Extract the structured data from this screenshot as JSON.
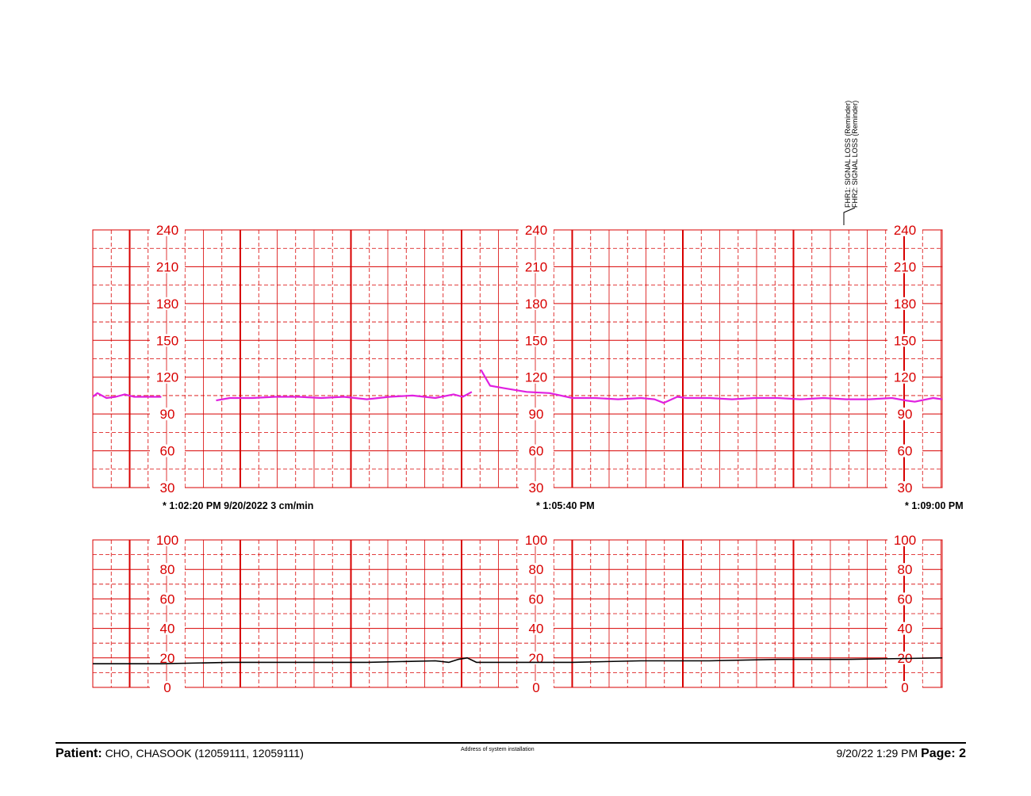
{
  "annotations": [
    "FHR1: SIGNAL LOSS (Reminder)",
    "FHR2: SIGNAL LOSS (Reminder)"
  ],
  "time_marks": [
    "* 1:02:20 PM  9/20/2022  3 cm/min",
    "* 1:05:40 PM",
    "* 1:09:00 PM"
  ],
  "footer": {
    "patient_label": "Patient:",
    "patient_value": "CHO, CHASOOK  (12059111, 12059111)",
    "address": "Address of system installation",
    "printed": "9/20/22 1:29 PM",
    "page_label": "Page: 2"
  },
  "colors": {
    "grid": "#d80000",
    "fhr_trace": "#e020e0",
    "uterine_trace": "#000000"
  },
  "chart_data": [
    {
      "type": "line",
      "ylim": [
        30,
        240
      ],
      "yticks": [
        240,
        210,
        180,
        150,
        120,
        90,
        60,
        30
      ],
      "grid": true,
      "x_minutes": [
        0,
        6.9
      ],
      "series": [
        {
          "segments": [
            [
              [
                0,
                104
              ],
              [
                0.1,
                107
              ],
              [
                0.3,
                103
              ],
              [
                0.5,
                104
              ],
              [
                0.7,
                106
              ],
              [
                0.9,
                104
              ],
              [
                1.2,
                104
              ],
              [
                1.5,
                104
              ]
            ],
            [
              [
                2.7,
                101
              ],
              [
                3.0,
                103
              ],
              [
                3.5,
                103
              ],
              [
                4.0,
                104
              ],
              [
                4.5,
                104
              ],
              [
                5.0,
                103
              ],
              [
                5.5,
                104
              ],
              [
                6.0,
                102
              ],
              [
                6.5,
                104
              ],
              [
                7.0,
                105
              ],
              [
                7.5,
                103
              ],
              [
                7.9,
                106
              ],
              [
                8.1,
                104
              ],
              [
                8.3,
                108
              ]
            ],
            [
              [
                8.5,
                126
              ],
              [
                8.7,
                113
              ],
              [
                9.0,
                111
              ],
              [
                9.5,
                108
              ],
              [
                10.0,
                107
              ],
              [
                10.5,
                103
              ],
              [
                11.0,
                103
              ],
              [
                11.5,
                102
              ],
              [
                12.0,
                103
              ],
              [
                12.3,
                102
              ],
              [
                12.5,
                99
              ],
              [
                12.8,
                104
              ],
              [
                13.0,
                103
              ],
              [
                13.5,
                103
              ],
              [
                14.0,
                102
              ],
              [
                14.5,
                103
              ],
              [
                15.0,
                103
              ],
              [
                15.5,
                102
              ],
              [
                16.0,
                103
              ],
              [
                16.5,
                102
              ],
              [
                17.0,
                102
              ],
              [
                17.5,
                103
              ],
              [
                17.8,
                101
              ],
              [
                18.0,
                100
              ],
              [
                18.4,
                103
              ],
              [
                18.6,
                102
              ]
            ]
          ]
        }
      ]
    },
    {
      "type": "line",
      "ylim": [
        0,
        100
      ],
      "yticks": [
        100,
        80,
        60,
        40,
        20,
        0
      ],
      "grid": true,
      "series": [
        {
          "segments": [
            [
              [
                0,
                16
              ],
              [
                1.5,
                16
              ],
              [
                3.0,
                17
              ],
              [
                4.5,
                17
              ],
              [
                6.0,
                17
              ],
              [
                7.5,
                18
              ],
              [
                7.8,
                17
              ],
              [
                8.0,
                19
              ],
              [
                8.2,
                20
              ],
              [
                8.4,
                17
              ],
              [
                9.0,
                17
              ],
              [
                10.5,
                17
              ],
              [
                12.0,
                18
              ],
              [
                13.5,
                18
              ],
              [
                15.0,
                19
              ],
              [
                16.5,
                19
              ],
              [
                18.6,
                20
              ]
            ]
          ]
        }
      ]
    }
  ]
}
